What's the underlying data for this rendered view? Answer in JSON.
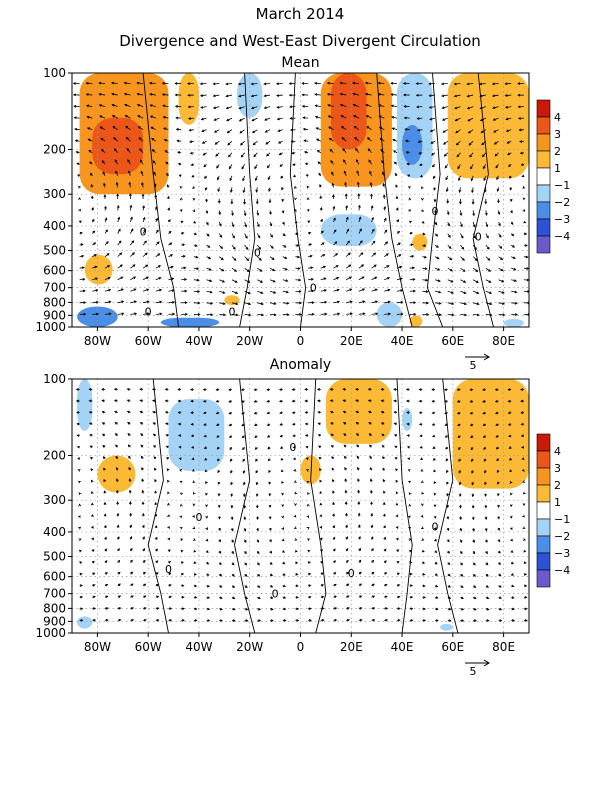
{
  "header": {
    "title": "March 2014",
    "subtitle": "Divergence and West-East Divergent Circulation"
  },
  "colors": {
    "shading": [
      "#6a5acd",
      "#2e52d6",
      "#4a8ee8",
      "#a5d3f5",
      "#ffffff",
      "#fcb935",
      "#f7951e",
      "#ec5618",
      "#c91a09"
    ],
    "contour": "#000000",
    "grid": "#999999"
  },
  "chart_data": [
    {
      "type": "heatmap",
      "title": "Mean",
      "x_ticks": [
        "80W",
        "60W",
        "40W",
        "20W",
        "0",
        "20E",
        "40E",
        "60E",
        "80E"
      ],
      "x_tick_values": [
        -80,
        -60,
        -40,
        -20,
        0,
        20,
        40,
        60,
        80
      ],
      "xlim": [
        -90,
        90
      ],
      "y_ticks": [
        "100",
        "200",
        "300",
        "400",
        "500",
        "600",
        "700",
        "800",
        "900",
        "1000"
      ],
      "y_tick_values": [
        100,
        200,
        300,
        400,
        500,
        600,
        700,
        800,
        900,
        1000
      ],
      "ylim": [
        1000,
        100
      ],
      "y_scale": "log",
      "colorbar_labels": [
        "4",
        "3",
        "2",
        "1",
        "−1",
        "−2",
        "−3",
        "−4"
      ],
      "colorbar_bounds": [
        -5,
        -4,
        -3,
        -2,
        -1,
        1,
        2,
        3,
        4,
        5
      ],
      "vector_reference": "5",
      "contour_labels": [
        "0",
        "0",
        "0",
        "0",
        "0",
        "0",
        "0"
      ],
      "divergence_cells": [
        {
          "lon": [
            -87,
            -52
          ],
          "p": [
            100,
            300
          ],
          "value": 2.4
        },
        {
          "lon": [
            -82,
            -62
          ],
          "p": [
            150,
            250
          ],
          "value": 3.4
        },
        {
          "lon": [
            -48,
            -40
          ],
          "p": [
            100,
            160
          ],
          "value": 1.4
        },
        {
          "lon": [
            8,
            36
          ],
          "p": [
            100,
            280
          ],
          "value": 2.6
        },
        {
          "lon": [
            12,
            26
          ],
          "p": [
            100,
            200
          ],
          "value": 3.6
        },
        {
          "lon": [
            58,
            90
          ],
          "p": [
            100,
            260
          ],
          "value": 1.6
        },
        {
          "lon": [
            -25,
            -15
          ],
          "p": [
            100,
            150
          ],
          "value": -1.3
        },
        {
          "lon": [
            38,
            52
          ],
          "p": [
            100,
            260
          ],
          "value": -1.8
        },
        {
          "lon": [
            40,
            48
          ],
          "p": [
            160,
            230
          ],
          "value": -2.6
        },
        {
          "lon": [
            8,
            30
          ],
          "p": [
            360,
            480
          ],
          "value": -1.4
        },
        {
          "lon": [
            -85,
            -74
          ],
          "p": [
            520,
            680
          ],
          "value": 1.4
        },
        {
          "lon": [
            44,
            50
          ],
          "p": [
            430,
            500
          ],
          "value": 1.3
        },
        {
          "lon": [
            -30,
            -24
          ],
          "p": [
            750,
            820
          ],
          "value": 1.3
        },
        {
          "lon": [
            -88,
            -72
          ],
          "p": [
            830,
            1000
          ],
          "value": -2.4
        },
        {
          "lon": [
            -55,
            -32
          ],
          "p": [
            920,
            1000
          ],
          "value": -2.8
        },
        {
          "lon": [
            30,
            40
          ],
          "p": [
            800,
            1000
          ],
          "value": -1.4
        },
        {
          "lon": [
            43,
            48
          ],
          "p": [
            900,
            1000
          ],
          "value": 1.4
        },
        {
          "lon": [
            80,
            88
          ],
          "p": [
            930,
            1000
          ],
          "value": -1.4
        }
      ],
      "wind_vectors": {
        "u_scale": 1.0,
        "omega_scale": 1.0
      }
    },
    {
      "type": "heatmap",
      "title": "Anomaly",
      "x_ticks": [
        "80W",
        "60W",
        "40W",
        "20W",
        "0",
        "20E",
        "40E",
        "60E",
        "80E"
      ],
      "x_tick_values": [
        -80,
        -60,
        -40,
        -20,
        0,
        20,
        40,
        60,
        80
      ],
      "xlim": [
        -90,
        90
      ],
      "y_ticks": [
        "100",
        "200",
        "300",
        "400",
        "500",
        "600",
        "700",
        "800",
        "900",
        "1000"
      ],
      "y_tick_values": [
        100,
        200,
        300,
        400,
        500,
        600,
        700,
        800,
        900,
        1000
      ],
      "ylim": [
        1000,
        100
      ],
      "y_scale": "log",
      "colorbar_labels": [
        "4",
        "3",
        "2",
        "1",
        "−1",
        "−2",
        "−3",
        "−4"
      ],
      "colorbar_bounds": [
        -5,
        -4,
        -3,
        -2,
        -1,
        1,
        2,
        3,
        4,
        5
      ],
      "vector_reference": "5",
      "contour_labels": [
        "0",
        "0",
        "0",
        "0",
        "0",
        "0"
      ],
      "divergence_cells": [
        {
          "lon": [
            -88,
            -82
          ],
          "p": [
            100,
            160
          ],
          "value": -1.3
        },
        {
          "lon": [
            -52,
            -30
          ],
          "p": [
            120,
            230
          ],
          "value": -1.4
        },
        {
          "lon": [
            -80,
            -65
          ],
          "p": [
            200,
            280
          ],
          "value": 1.3
        },
        {
          "lon": [
            10,
            36
          ],
          "p": [
            100,
            180
          ],
          "value": 1.5
        },
        {
          "lon": [
            0,
            8
          ],
          "p": [
            200,
            260
          ],
          "value": 1.4
        },
        {
          "lon": [
            60,
            90
          ],
          "p": [
            100,
            270
          ],
          "value": 1.5
        },
        {
          "lon": [
            40,
            44
          ],
          "p": [
            130,
            160
          ],
          "value": -1.3
        },
        {
          "lon": [
            -88,
            -82
          ],
          "p": [
            860,
            960
          ],
          "value": -1.3
        },
        {
          "lon": [
            55,
            60
          ],
          "p": [
            920,
            980
          ],
          "value": -1.3
        }
      ],
      "wind_vectors": {
        "u_scale": 0.5,
        "omega_scale": 0.6
      }
    }
  ]
}
